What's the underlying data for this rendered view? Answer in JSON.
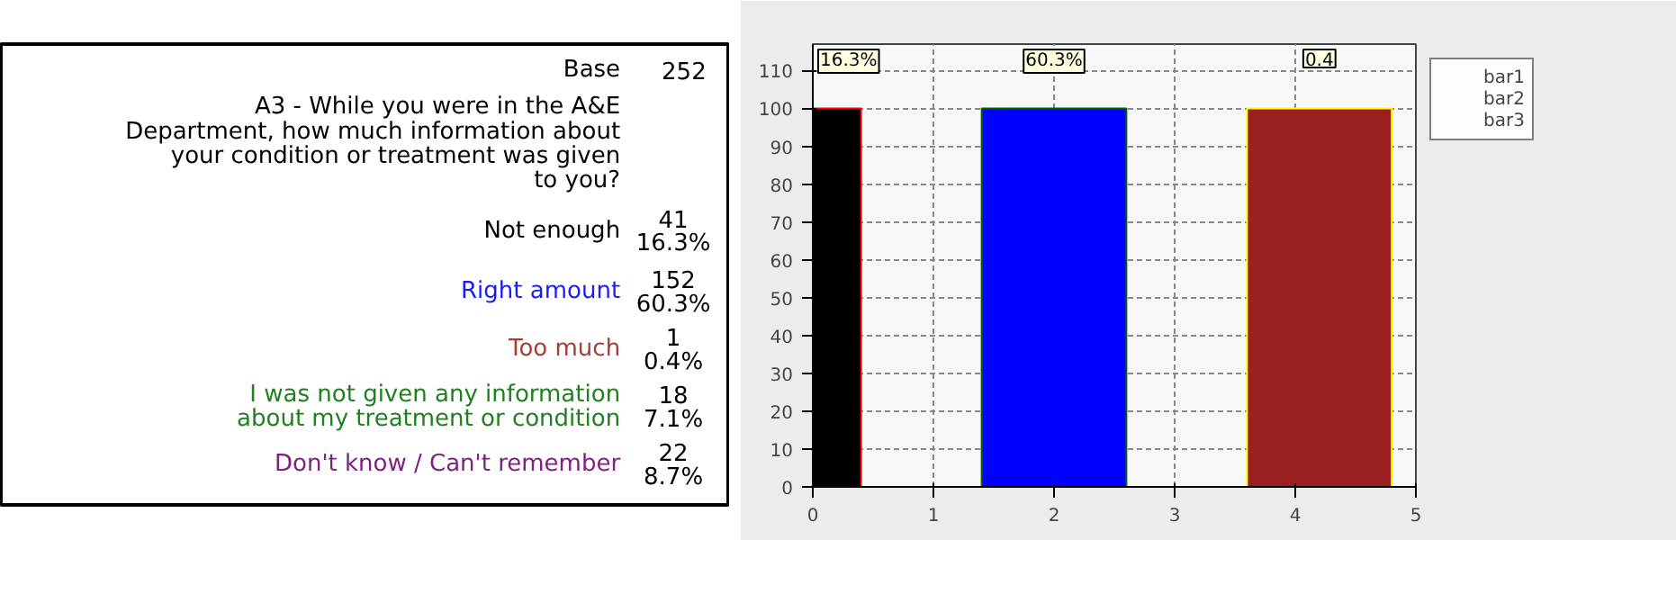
{
  "chart_data": [
    {
      "type": "other",
      "title": "A3 - While you were in the A&E Department, how much information about your condition or treatment was given to you?",
      "annotations": [
        "Base",
        "252",
        "41",
        "16.3%",
        "152",
        "60.3%",
        "1",
        "0.4%",
        "18",
        "7.1%",
        "22",
        "8.7%"
      ],
      "categories": [
        "Not enough",
        "Right amount",
        "Too much",
        "I was not given any information about my treatment or condition",
        "Don't know / Can't remember"
      ],
      "colors": [
        "#000000",
        "#1a1aff",
        "#a0403a",
        "#208020",
        "#802080"
      ]
    },
    {
      "type": "bar",
      "xlim": [
        0,
        5
      ],
      "xticks": [
        0,
        1,
        2,
        3,
        4,
        5
      ],
      "ylim": [
        0,
        117
      ],
      "yticks": [
        0,
        10,
        20,
        30,
        40,
        50,
        60,
        70,
        80,
        90,
        100,
        110
      ],
      "grid": true,
      "legend": "right",
      "annotations": [
        "16.3%",
        "60.3%",
        "0.4"
      ],
      "series": [
        {
          "name": "bar1",
          "color": "#ff0000",
          "x": [
            0.2
          ],
          "values": [
            100
          ],
          "colors": [
            "#000000"
          ]
        },
        {
          "name": "bar2",
          "color": "#006400",
          "x": [
            2
          ],
          "values": [
            100
          ],
          "colors": [
            "#0000ff"
          ]
        },
        {
          "name": "bar3",
          "color": "#ffff00",
          "x": [
            4.2
          ],
          "values": [
            100
          ],
          "colors": [
            "#9a2020"
          ]
        }
      ]
    }
  ]
}
